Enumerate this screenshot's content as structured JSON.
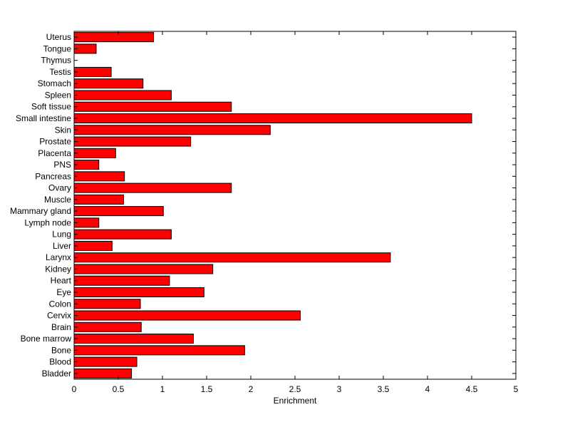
{
  "chart_data": {
    "type": "bar",
    "orientation": "horizontal",
    "title": "",
    "xlabel": "Enrichment",
    "ylabel": "",
    "xlim": [
      0,
      5
    ],
    "xticks": [
      0,
      0.5,
      1,
      1.5,
      2,
      2.5,
      3,
      3.5,
      4,
      4.5,
      5
    ],
    "tick_labels": [
      "0",
      "0.5",
      "1",
      "1.5",
      "2",
      "2.5",
      "3",
      "3.5",
      "4",
      "4.5",
      "5"
    ],
    "bar_color": "#ff0000",
    "bar_edge_color": "#000000",
    "grid": false,
    "categories": [
      "Bladder",
      "Blood",
      "Bone",
      "Bone marrow",
      "Brain",
      "Cervix",
      "Colon",
      "Eye",
      "Heart",
      "Kidney",
      "Larynx",
      "Liver",
      "Lung",
      "Lymph node",
      "Mammary gland",
      "Muscle",
      "Ovary",
      "Pancreas",
      "PNS",
      "Placenta",
      "Prostate",
      "Skin",
      "Small intestine",
      "Soft tissue",
      "Spleen",
      "Stomach",
      "Testis",
      "Thymus",
      "Tongue",
      "Uterus"
    ],
    "values": [
      0.65,
      0.71,
      1.93,
      1.35,
      0.76,
      2.56,
      0.75,
      1.47,
      1.08,
      1.57,
      3.58,
      0.43,
      1.1,
      0.28,
      1.01,
      0.56,
      1.78,
      0.57,
      0.28,
      0.47,
      1.32,
      2.22,
      4.5,
      1.78,
      1.1,
      0.78,
      0.42,
      0.0,
      0.25,
      0.9
    ]
  }
}
